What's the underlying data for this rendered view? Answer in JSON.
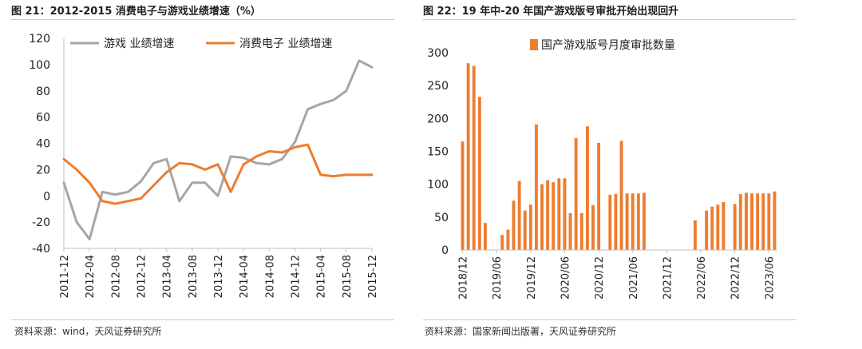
{
  "panels": [
    {
      "title": "图 21：2012-2015 消费电子与游戏业绩增速（%）",
      "source": "资料来源：wind，天风证券研究所"
    },
    {
      "title": "图 22：19 年中-20 年国产游戏版号审批开始出现回升",
      "source": "资料来源：国家新闻出版署，天风证券研究所"
    }
  ],
  "chart_data": [
    {
      "type": "line",
      "title": "",
      "xlabel": "",
      "ylabel": "",
      "ylim": [
        -40,
        120
      ],
      "yticks": [
        -40,
        -20,
        0,
        20,
        40,
        60,
        80,
        100,
        120
      ],
      "x": [
        "2011-12",
        "2012-02",
        "2012-04",
        "2012-06",
        "2012-08",
        "2012-10",
        "2012-12",
        "2013-02",
        "2013-04",
        "2013-06",
        "2013-08",
        "2013-10",
        "2013-12",
        "2014-02",
        "2014-04",
        "2014-06",
        "2014-08",
        "2014-10",
        "2014-12",
        "2015-02",
        "2015-04",
        "2015-06",
        "2015-08",
        "2015-10",
        "2015-12"
      ],
      "xticks": [
        "2011-12",
        "2012-04",
        "2012-08",
        "2012-12",
        "2013-04",
        "2013-08",
        "2013-12",
        "2014-04",
        "2014-08",
        "2014-12",
        "2015-04",
        "2015-08",
        "2015-12"
      ],
      "series": [
        {
          "name": "游戏 业绩增速",
          "color": "#a6a6a6",
          "values": [
            10,
            -20,
            -33,
            3,
            1,
            3,
            11,
            25,
            28,
            -4,
            10,
            10,
            0,
            30,
            29,
            25,
            24,
            28,
            41,
            66,
            70,
            73,
            80,
            103,
            98
          ]
        },
        {
          "name": "消费电子 业绩增速",
          "color": "#ed7d31",
          "values": [
            28,
            20,
            10,
            -4,
            -6,
            -4,
            -2,
            8,
            18,
            25,
            24,
            20,
            24,
            3,
            24,
            30,
            34,
            33,
            37,
            39,
            16,
            15,
            16,
            16,
            16
          ]
        }
      ],
      "legend": "top"
    },
    {
      "type": "bar",
      "title": "",
      "xlabel": "",
      "ylabel": "",
      "ylim": [
        0,
        300
      ],
      "yticks": [
        0,
        50,
        100,
        150,
        200,
        250,
        300
      ],
      "categories": [
        "2018/12",
        "2019/01",
        "2019/02",
        "2019/03",
        "2019/04",
        "2019/05",
        "2019/06",
        "2019/07",
        "2019/08",
        "2019/09",
        "2019/10",
        "2019/11",
        "2019/12",
        "2020/01",
        "2020/02",
        "2020/03",
        "2020/04",
        "2020/05",
        "2020/06",
        "2020/07",
        "2020/08",
        "2020/09",
        "2020/10",
        "2020/11",
        "2020/12",
        "2021/01",
        "2021/02",
        "2021/03",
        "2021/04",
        "2021/05",
        "2021/06",
        "2021/07",
        "2021/08",
        "2021/09",
        "2021/10",
        "2021/11",
        "2021/12",
        "2022/01",
        "2022/02",
        "2022/03",
        "2022/04",
        "2022/05",
        "2022/06",
        "2022/07",
        "2022/08",
        "2022/09",
        "2022/10",
        "2022/11",
        "2022/12",
        "2023/01",
        "2023/02",
        "2023/03",
        "2023/04",
        "2023/05",
        "2023/06",
        "2023/07"
      ],
      "xticks": [
        "2018/12",
        "2019/06",
        "2019/12",
        "2020/06",
        "2020/12",
        "2021/06",
        "2021/12",
        "2022/06",
        "2022/12",
        "2023/06"
      ],
      "series": [
        {
          "name": "国产游戏版号月度审批数量",
          "color": "#ed7d31",
          "values": [
            165,
            284,
            280,
            233,
            41,
            0,
            0,
            23,
            31,
            75,
            105,
            60,
            69,
            191,
            100,
            106,
            103,
            109,
            109,
            56,
            170,
            56,
            188,
            68,
            163,
            0,
            84,
            85,
            166,
            86,
            86,
            86,
            87,
            0,
            0,
            0,
            0,
            0,
            0,
            0,
            0,
            45,
            0,
            60,
            66,
            69,
            73,
            0,
            70,
            85,
            87,
            86,
            86,
            86,
            86,
            89
          ]
        }
      ],
      "legend": "top"
    }
  ]
}
